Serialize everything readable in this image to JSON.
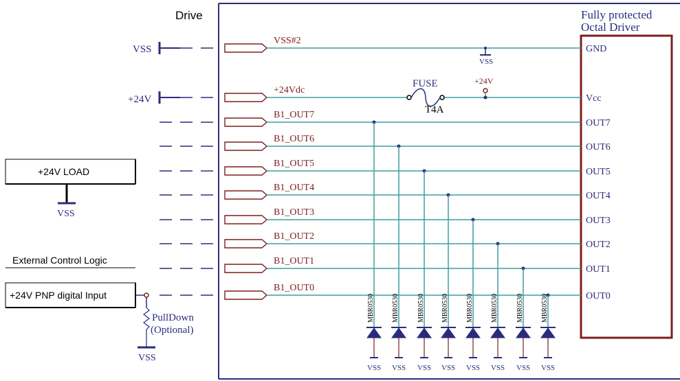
{
  "drive_label": "Drive",
  "driver": {
    "title_line1": "Fully protected",
    "title_line2": "Octal Driver",
    "pins": [
      "GND",
      "Vcc",
      "OUT7",
      "OUT6",
      "OUT5",
      "OUT4",
      "OUT3",
      "OUT2",
      "OUT1",
      "OUT0"
    ]
  },
  "nets": [
    "VSS#2",
    "+24Vdc",
    "B1_OUT7",
    "B1_OUT6",
    "B1_OUT5",
    "B1_OUT4",
    "B1_OUT3",
    "B1_OUT2",
    "B1_OUT1",
    "B1_OUT0"
  ],
  "supplies": {
    "vss": "VSS",
    "v24": "+24V"
  },
  "fuse": {
    "label": "FUSE",
    "rating": "T4A"
  },
  "vcc_tap_label": "+24V",
  "gnd_tap_label": "VSS",
  "load": {
    "label": "+24V LOAD",
    "ground": "VSS"
  },
  "external": {
    "title": "External Control Logic",
    "input_label": "+24V PNP digital Input",
    "pulldown_line1": "PullDown",
    "pulldown_line2": "(Optional)",
    "ground": "VSS"
  },
  "diode_part": "MBR0530",
  "diode_ground": "VSS",
  "colors": {
    "frame": "#2b2b7e",
    "wire": "#3d9ea0",
    "driver": "#7b1f1f",
    "net_label": "#7b1f1f",
    "text": "#2b2b7e"
  }
}
